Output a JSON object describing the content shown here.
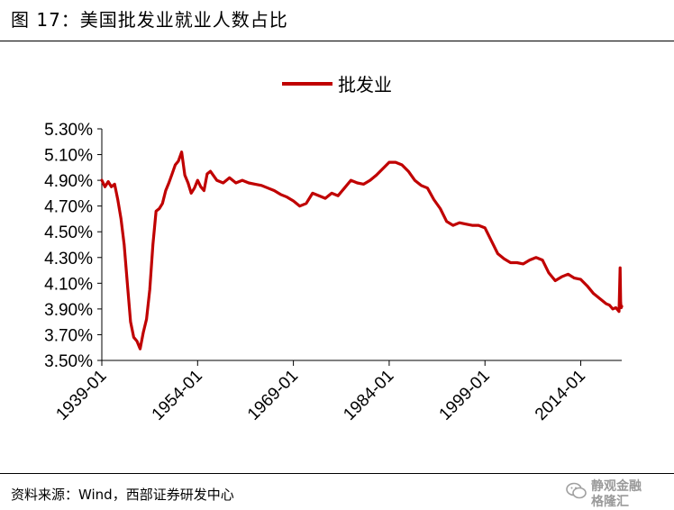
{
  "header": {
    "title": "图 17：美国批发业就业人数占比"
  },
  "footer": {
    "source": "资料来源：Wind，西部证券研发中心",
    "watermark_top": "静观金融",
    "watermark_bottom": "格隆汇"
  },
  "colors": {
    "series": "#c00000",
    "axis": "#000000"
  },
  "chart_data": {
    "type": "line",
    "legend": {
      "entries": [
        "批发业"
      ],
      "placement": "top-center"
    },
    "x_axis": {
      "type": "date",
      "range": [
        "1939-01",
        "2020-06"
      ],
      "tick_labels": [
        "1939-01",
        "1954-01",
        "1969-01",
        "1984-01",
        "1999-01",
        "2014-01"
      ]
    },
    "y_axis": {
      "range": [
        3.5,
        5.3
      ],
      "tick_labels": [
        "5.30%",
        "5.10%",
        "4.90%",
        "4.70%",
        "4.50%",
        "4.30%",
        "4.10%",
        "3.90%",
        "3.70%",
        "3.50%"
      ]
    },
    "grid": false,
    "series": [
      {
        "name": "批发业",
        "x": [
          "1939-01",
          "1939-07",
          "1940-01",
          "1940-07",
          "1941-01",
          "1941-07",
          "1942-01",
          "1942-07",
          "1943-01",
          "1943-07",
          "1944-01",
          "1944-07",
          "1945-01",
          "1945-07",
          "1946-01",
          "1946-07",
          "1947-01",
          "1947-07",
          "1948-01",
          "1948-07",
          "1949-01",
          "1949-07",
          "1950-01",
          "1950-07",
          "1951-01",
          "1951-07",
          "1952-01",
          "1952-07",
          "1953-01",
          "1953-07",
          "1954-01",
          "1954-07",
          "1955-01",
          "1955-07",
          "1956-01",
          "1957-01",
          "1958-01",
          "1959-01",
          "1960-01",
          "1961-01",
          "1962-01",
          "1963-01",
          "1964-01",
          "1965-01",
          "1966-01",
          "1967-01",
          "1968-01",
          "1969-01",
          "1970-01",
          "1971-01",
          "1972-01",
          "1973-01",
          "1974-01",
          "1975-01",
          "1976-01",
          "1977-01",
          "1978-01",
          "1979-01",
          "1980-01",
          "1981-01",
          "1982-01",
          "1983-01",
          "1984-01",
          "1985-01",
          "1986-01",
          "1987-01",
          "1988-01",
          "1989-01",
          "1990-01",
          "1991-01",
          "1992-01",
          "1993-01",
          "1994-01",
          "1995-01",
          "1996-01",
          "1997-01",
          "1998-01",
          "1999-01",
          "2000-01",
          "2001-01",
          "2002-01",
          "2003-01",
          "2004-01",
          "2005-01",
          "2006-01",
          "2007-01",
          "2008-01",
          "2009-01",
          "2010-01",
          "2011-01",
          "2012-01",
          "2013-01",
          "2014-01",
          "2015-01",
          "2016-01",
          "2017-01",
          "2018-01",
          "2018-07",
          "2019-01",
          "2019-07",
          "2020-01",
          "2020-03",
          "2020-04",
          "2020-05",
          "2020-06"
        ],
        "values": [
          4.9,
          4.85,
          4.89,
          4.85,
          4.87,
          4.75,
          4.6,
          4.4,
          4.1,
          3.8,
          3.68,
          3.65,
          3.59,
          3.72,
          3.82,
          4.05,
          4.4,
          4.66,
          4.68,
          4.72,
          4.82,
          4.88,
          4.95,
          5.02,
          5.05,
          5.12,
          4.94,
          4.88,
          4.8,
          4.84,
          4.9,
          4.85,
          4.82,
          4.95,
          4.97,
          4.9,
          4.88,
          4.92,
          4.88,
          4.9,
          4.88,
          4.87,
          4.86,
          4.84,
          4.82,
          4.79,
          4.77,
          4.74,
          4.7,
          4.72,
          4.8,
          4.78,
          4.76,
          4.8,
          4.78,
          4.84,
          4.9,
          4.88,
          4.87,
          4.9,
          4.94,
          4.99,
          5.04,
          5.04,
          5.02,
          4.97,
          4.9,
          4.86,
          4.84,
          4.75,
          4.68,
          4.58,
          4.55,
          4.57,
          4.56,
          4.55,
          4.55,
          4.53,
          4.43,
          4.33,
          4.29,
          4.26,
          4.26,
          4.25,
          4.28,
          4.3,
          4.28,
          4.18,
          4.12,
          4.15,
          4.17,
          4.14,
          4.13,
          4.08,
          4.02,
          3.98,
          3.94,
          3.93,
          3.9,
          3.91,
          3.88,
          4.22,
          3.95,
          3.91,
          3.92
        ]
      }
    ]
  }
}
